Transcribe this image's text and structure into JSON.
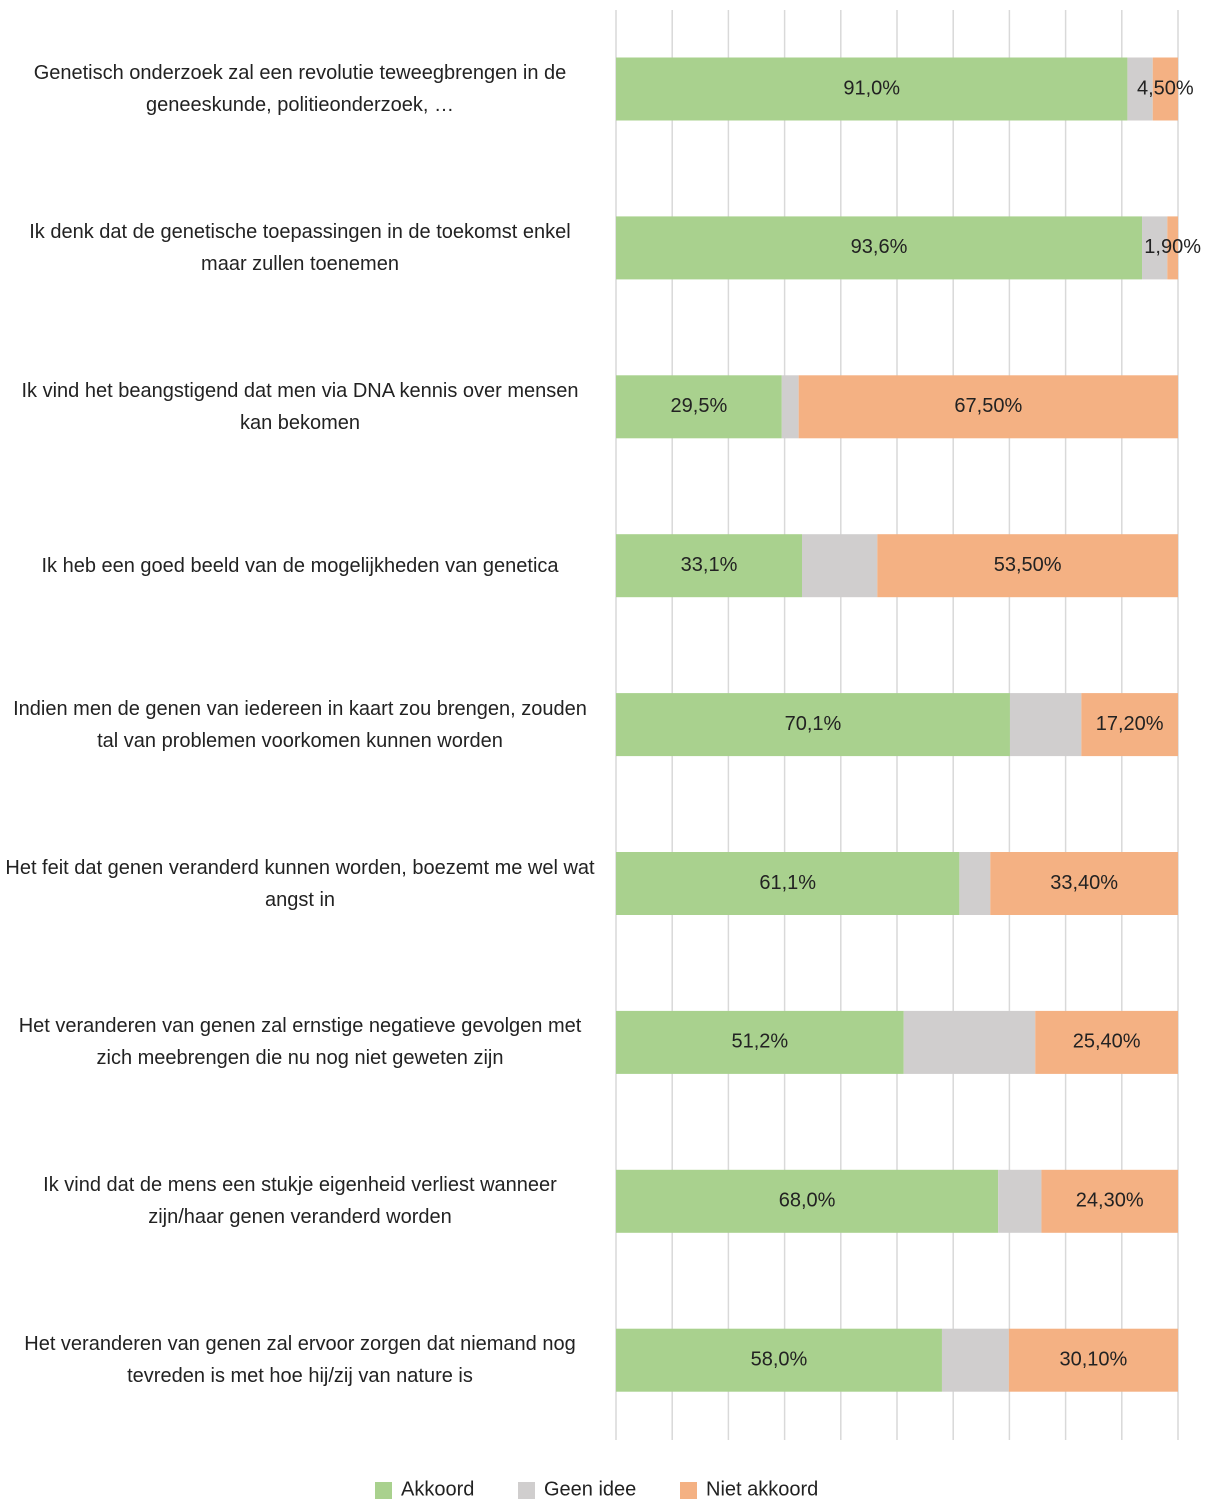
{
  "chart_data": {
    "type": "stacked_barh",
    "categories": [
      "Genetisch onderzoek zal een revolutie teweegbrengen in de geneeskunde, politieonderzoek, …",
      "Ik denk dat de genetische toepassingen in de toekomst enkel maar zullen toenemen",
      "Ik vind het beangstigend dat men via DNA kennis over mensen kan bekomen",
      "Ik heb een goed beeld van de mogelijkheden van genetica",
      "Indien men de genen van iedereen in kaart zou brengen, zouden tal van problemen voorkomen kunnen worden",
      "Het feit dat genen veranderd kunnen worden, boezemt me wel wat angst in",
      "Het veranderen van genen zal ernstige negatieve gevolgen met zich meebrengen die nu nog niet geweten zijn",
      "Ik vind dat de mens een stukje eigenheid verliest wanneer zijn/haar genen veranderd worden",
      "Het veranderen van genen zal ervoor zorgen dat niemand nog tevreden is met hoe hij/zij van nature is"
    ],
    "series": [
      {
        "name": "Akkoord",
        "color": "#a9d18e",
        "values": [
          91.0,
          93.6,
          29.5,
          33.1,
          70.1,
          61.1,
          51.2,
          68.0,
          58.0
        ],
        "value_labels": [
          "91,0%",
          "93,6%",
          "29,5%",
          "33,1%",
          "70,1%",
          "61,1%",
          "51,2%",
          "68,0%",
          "58,0%"
        ]
      },
      {
        "name": "Geen idee",
        "color": "#d0cece",
        "values": [
          4.5,
          4.5,
          3.0,
          13.4,
          12.7,
          5.5,
          23.4,
          7.7,
          11.9
        ]
      },
      {
        "name": "Niet akkoord",
        "color": "#f4b183",
        "values": [
          4.5,
          1.9,
          67.5,
          53.5,
          17.2,
          33.4,
          25.4,
          24.3,
          30.1
        ],
        "value_labels": [
          "4,50%",
          "1,90%",
          "67,50%",
          "53,50%",
          "17,20%",
          "33,40%",
          "25,40%",
          "24,30%",
          "30,10%"
        ]
      }
    ],
    "xlim": [
      0,
      100
    ],
    "xticks": [
      0,
      10,
      20,
      30,
      40,
      50,
      60,
      70,
      80,
      90,
      100
    ],
    "grid": true,
    "legend": "bottom"
  }
}
